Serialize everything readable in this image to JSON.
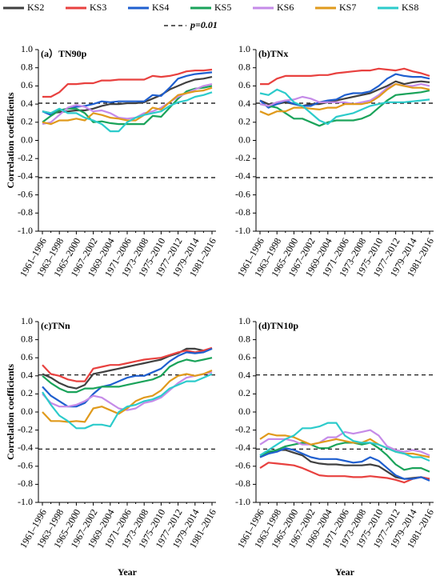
{
  "chart_data": [
    {
      "type": "line",
      "title": "(a）TN90p",
      "ylabel": "Correlation coefficients",
      "reference_label": "p=0.01",
      "categories": [
        "1961–1996",
        null,
        "1963–1998",
        null,
        "1965–2000",
        null,
        "1967–2002",
        null,
        "1969–2004",
        null,
        "1971–2006",
        null,
        "1973–2008",
        null,
        "1975–2010",
        null,
        "1977–2012",
        null,
        "1979–2014",
        null,
        "1981–2016"
      ],
      "ylim": [
        -1,
        1
      ],
      "yticks": [
        {
          "value": 1,
          "label": "1.0"
        },
        0.8,
        0.6,
        0.4,
        0.2,
        {
          "value": 0,
          "label": "0.0"
        },
        -0.2,
        -0.4,
        -0.6,
        -0.8,
        {
          "value": -1,
          "label": "-1.0"
        }
      ],
      "reference_lines": [
        0.41,
        -0.41
      ],
      "series": [
        {
          "name": "KS2",
          "color": "#404040",
          "values": [
            0.32,
            0.3,
            0.31,
            0.32,
            0.33,
            0.33,
            0.35,
            0.38,
            0.4,
            0.4,
            0.41,
            0.41,
            0.42,
            0.46,
            0.5,
            0.56,
            0.6,
            0.64,
            0.67,
            0.68,
            0.7
          ]
        },
        {
          "name": "KS3",
          "color": "#e8413f",
          "values": [
            0.48,
            0.48,
            0.53,
            0.62,
            0.62,
            0.63,
            0.63,
            0.66,
            0.66,
            0.67,
            0.67,
            0.67,
            0.67,
            0.71,
            0.7,
            0.71,
            0.73,
            0.76,
            0.77,
            0.77,
            0.78
          ]
        },
        {
          "name": "KS4",
          "color": "#1f5fcf",
          "values": [
            0.32,
            0.28,
            0.33,
            0.35,
            0.37,
            0.38,
            0.4,
            0.43,
            0.42,
            0.43,
            0.43,
            0.43,
            0.43,
            0.5,
            0.49,
            0.58,
            0.68,
            0.71,
            0.73,
            0.74,
            0.75
          ]
        },
        {
          "name": "KS5",
          "color": "#1aa35a",
          "values": [
            0.2,
            0.27,
            0.33,
            0.35,
            0.35,
            0.3,
            0.2,
            0.21,
            0.19,
            0.18,
            0.18,
            0.18,
            0.18,
            0.27,
            0.26,
            0.36,
            0.46,
            0.54,
            0.57,
            0.58,
            0.6
          ]
        },
        {
          "name": "KS6",
          "color": "#c58be8",
          "values": [
            0.18,
            0.2,
            0.28,
            0.36,
            0.39,
            0.37,
            0.32,
            0.33,
            0.3,
            0.25,
            0.24,
            0.25,
            0.3,
            0.32,
            0.36,
            0.42,
            0.48,
            0.52,
            0.56,
            0.6,
            0.62
          ]
        },
        {
          "name": "KS7",
          "color": "#e09a1c",
          "values": [
            0.2,
            0.18,
            0.22,
            0.22,
            0.24,
            0.22,
            0.3,
            0.28,
            0.25,
            0.24,
            0.22,
            0.22,
            0.28,
            0.36,
            0.34,
            0.42,
            0.5,
            0.52,
            0.54,
            0.55,
            0.58
          ]
        },
        {
          "name": "KS8",
          "color": "#2ccbcb",
          "values": [
            0.32,
            0.3,
            0.35,
            0.3,
            0.3,
            0.25,
            0.22,
            0.18,
            0.1,
            0.1,
            0.2,
            0.25,
            0.28,
            0.3,
            0.32,
            0.38,
            0.42,
            0.44,
            0.48,
            0.5,
            0.53
          ]
        }
      ]
    },
    {
      "type": "line",
      "title": "(b)TNx",
      "categories": [
        "1961–1996",
        null,
        "1963–1998",
        null,
        "1965–2000",
        null,
        "1967–2002",
        null,
        "1969–2004",
        null,
        "1971–2006",
        null,
        "1973–2008",
        null,
        "1975–2010",
        null,
        "1977–2012",
        null,
        "1979–2014",
        null,
        "1981–2016"
      ],
      "ylim": [
        -1,
        1
      ],
      "yticks": [
        {
          "value": 1,
          "label": "1.0"
        },
        0.8,
        0.6,
        0.4,
        0.2,
        {
          "value": 0,
          "label": "0.0"
        },
        -0.2,
        -0.4,
        -0.6,
        -0.8,
        {
          "value": -1,
          "label": "-1.0"
        }
      ],
      "reference_lines": [
        0.41,
        -0.41
      ],
      "series": [
        {
          "name": "KS2",
          "color": "#404040",
          "values": [
            0.44,
            0.4,
            0.4,
            0.42,
            0.4,
            0.38,
            0.4,
            0.4,
            0.42,
            0.44,
            0.46,
            0.48,
            0.5,
            0.52,
            0.56,
            0.6,
            0.65,
            0.62,
            0.64,
            0.65,
            0.64
          ]
        },
        {
          "name": "KS3",
          "color": "#e8413f",
          "values": [
            0.62,
            0.62,
            0.68,
            0.71,
            0.71,
            0.71,
            0.71,
            0.72,
            0.72,
            0.74,
            0.75,
            0.76,
            0.77,
            0.77,
            0.79,
            0.78,
            0.77,
            0.79,
            0.76,
            0.74,
            0.71
          ]
        },
        {
          "name": "KS4",
          "color": "#1f5fcf",
          "values": [
            0.44,
            0.36,
            0.4,
            0.44,
            0.4,
            0.38,
            0.38,
            0.42,
            0.44,
            0.45,
            0.5,
            0.52,
            0.52,
            0.54,
            0.6,
            0.68,
            0.73,
            0.71,
            0.7,
            0.7,
            0.68
          ]
        },
        {
          "name": "KS5",
          "color": "#1aa35a",
          "values": [
            0.4,
            0.38,
            0.36,
            0.3,
            0.24,
            0.24,
            0.2,
            0.16,
            0.2,
            0.22,
            0.22,
            0.22,
            0.24,
            0.28,
            0.36,
            0.44,
            0.5,
            0.51,
            0.52,
            0.53,
            0.55
          ]
        },
        {
          "name": "KS6",
          "color": "#c58be8",
          "values": [
            0.4,
            0.38,
            0.42,
            0.44,
            0.45,
            0.48,
            0.46,
            0.42,
            0.42,
            0.42,
            0.42,
            0.4,
            0.42,
            0.44,
            0.5,
            0.58,
            0.62,
            0.6,
            0.6,
            0.62,
            0.6
          ]
        },
        {
          "name": "KS7",
          "color": "#e09a1c",
          "values": [
            0.32,
            0.28,
            0.32,
            0.32,
            0.36,
            0.36,
            0.35,
            0.34,
            0.36,
            0.36,
            0.4,
            0.4,
            0.4,
            0.42,
            0.48,
            0.56,
            0.62,
            0.6,
            0.58,
            0.58,
            0.56
          ]
        },
        {
          "name": "KS8",
          "color": "#2ccbcb",
          "values": [
            0.52,
            0.5,
            0.56,
            0.52,
            0.42,
            0.38,
            0.3,
            0.22,
            0.18,
            0.26,
            0.28,
            0.3,
            0.34,
            0.38,
            0.4,
            0.42,
            0.42,
            0.42,
            0.43,
            0.44,
            0.45
          ]
        }
      ]
    },
    {
      "type": "line",
      "title": "(c)TNn",
      "ylabel": "Correlation coefficients",
      "xlabel": "Year",
      "categories": [
        "1961–1996",
        null,
        "1963–1998",
        null,
        "1965–2000",
        null,
        "1967–2002",
        null,
        "1969–2004",
        null,
        "1971–2006",
        null,
        "1973–2008",
        null,
        "1975–2010",
        null,
        "1977–2012",
        null,
        "1979–2014",
        null,
        "1981–2016"
      ],
      "ylim": [
        -1,
        1
      ],
      "yticks": [
        {
          "value": 1,
          "label": "1.0"
        },
        0.8,
        0.6,
        0.4,
        0.2,
        {
          "value": 0,
          "label": "0.0"
        },
        -0.2,
        -0.4,
        -0.6,
        -0.8,
        {
          "value": -1,
          "label": "-1.0"
        }
      ],
      "reference_lines": [
        0.41,
        -0.41
      ],
      "series": [
        {
          "name": "KS2",
          "color": "#404040",
          "values": [
            0.42,
            0.38,
            0.32,
            0.28,
            0.26,
            0.3,
            0.42,
            0.44,
            0.46,
            0.48,
            0.5,
            0.52,
            0.54,
            0.56,
            0.58,
            0.62,
            0.65,
            0.7,
            0.7,
            0.68,
            0.7
          ]
        },
        {
          "name": "KS3",
          "color": "#e8413f",
          "values": [
            0.52,
            0.42,
            0.4,
            0.36,
            0.34,
            0.34,
            0.48,
            0.5,
            0.52,
            0.52,
            0.54,
            0.56,
            0.58,
            0.59,
            0.6,
            0.63,
            0.66,
            0.68,
            0.66,
            0.68,
            0.71
          ]
        },
        {
          "name": "KS4",
          "color": "#1f5fcf",
          "values": [
            0.28,
            0.18,
            0.12,
            0.06,
            0.06,
            0.1,
            0.2,
            0.28,
            0.3,
            0.34,
            0.38,
            0.4,
            0.4,
            0.44,
            0.48,
            0.56,
            0.62,
            0.66,
            0.65,
            0.66,
            0.7
          ]
        },
        {
          "name": "KS5",
          "color": "#1aa35a",
          "values": [
            0.4,
            0.32,
            0.26,
            0.22,
            0.22,
            0.26,
            0.26,
            0.28,
            0.28,
            0.28,
            0.3,
            0.32,
            0.34,
            0.36,
            0.4,
            0.5,
            0.55,
            0.58,
            0.56,
            0.58,
            0.6
          ]
        },
        {
          "name": "KS6",
          "color": "#c58be8",
          "values": [
            0.2,
            0.1,
            0.06,
            0.06,
            0.08,
            0.12,
            0.18,
            0.16,
            0.1,
            0.04,
            0.02,
            0.04,
            0.1,
            0.12,
            0.16,
            0.24,
            0.32,
            0.38,
            0.4,
            0.42,
            0.44
          ]
        },
        {
          "name": "KS7",
          "color": "#e09a1c",
          "values": [
            0.0,
            -0.1,
            -0.1,
            -0.11,
            -0.1,
            -0.11,
            0.04,
            0.06,
            0.02,
            -0.02,
            0.04,
            0.12,
            0.16,
            0.18,
            0.24,
            0.34,
            0.4,
            0.42,
            0.4,
            0.42,
            0.46
          ]
        },
        {
          "name": "KS8",
          "color": "#2ccbcb",
          "values": [
            0.22,
            0.08,
            -0.04,
            -0.1,
            -0.18,
            -0.18,
            -0.14,
            -0.14,
            -0.16,
            0.0,
            0.06,
            0.08,
            0.12,
            0.14,
            0.18,
            0.26,
            0.3,
            0.34,
            0.34,
            0.38,
            0.42
          ]
        }
      ]
    },
    {
      "type": "line",
      "title": "(d)TN10p",
      "xlabel": "Year",
      "categories": [
        "1961–1996",
        null,
        "1963–1998",
        null,
        "1965–2000",
        null,
        "1967–2002",
        null,
        "1969–2004",
        null,
        "1971–2006",
        null,
        "1973–2008",
        null,
        "1975–2010",
        null,
        "1977–2012",
        null,
        "1979–2014",
        null,
        "1981–2016"
      ],
      "ylim": [
        -1,
        1
      ],
      "yticks": [
        {
          "value": 1,
          "label": "1.0"
        },
        0.8,
        0.6,
        0.4,
        0.2,
        {
          "value": 0,
          "label": "0.0"
        },
        -0.2,
        -0.4,
        -0.6,
        -0.8,
        {
          "value": -1,
          "label": "-1.0"
        }
      ],
      "reference_lines": [
        0.41,
        -0.41
      ],
      "series": [
        {
          "name": "KS2",
          "color": "#404040",
          "values": [
            -0.5,
            -0.46,
            -0.42,
            -0.42,
            -0.45,
            -0.48,
            -0.55,
            -0.57,
            -0.58,
            -0.58,
            -0.59,
            -0.59,
            -0.59,
            -0.58,
            -0.6,
            -0.66,
            -0.72,
            -0.74,
            -0.73,
            -0.72,
            -0.74
          ]
        },
        {
          "name": "KS3",
          "color": "#e8413f",
          "values": [
            -0.62,
            -0.56,
            -0.57,
            -0.58,
            -0.59,
            -0.62,
            -0.66,
            -0.7,
            -0.71,
            -0.71,
            -0.71,
            -0.72,
            -0.72,
            -0.71,
            -0.72,
            -0.73,
            -0.75,
            -0.78,
            -0.74,
            -0.72,
            -0.74
          ]
        },
        {
          "name": "KS4",
          "color": "#1f5fcf",
          "values": [
            -0.5,
            -0.46,
            -0.44,
            -0.4,
            -0.42,
            -0.46,
            -0.5,
            -0.52,
            -0.52,
            -0.52,
            -0.54,
            -0.56,
            -0.55,
            -0.5,
            -0.54,
            -0.62,
            -0.7,
            -0.74,
            -0.74,
            -0.72,
            -0.76
          ]
        },
        {
          "name": "KS5",
          "color": "#1aa35a",
          "values": [
            -0.48,
            -0.44,
            -0.42,
            -0.38,
            -0.36,
            -0.34,
            -0.36,
            -0.4,
            -0.4,
            -0.36,
            -0.34,
            -0.34,
            -0.36,
            -0.34,
            -0.4,
            -0.48,
            -0.58,
            -0.64,
            -0.62,
            -0.62,
            -0.66
          ]
        },
        {
          "name": "KS6",
          "color": "#c58be8",
          "values": [
            -0.36,
            -0.3,
            -0.3,
            -0.3,
            -0.32,
            -0.36,
            -0.36,
            -0.34,
            -0.28,
            -0.28,
            -0.22,
            -0.24,
            -0.22,
            -0.2,
            -0.26,
            -0.38,
            -0.42,
            -0.44,
            -0.42,
            -0.44,
            -0.48
          ]
        },
        {
          "name": "KS7",
          "color": "#e09a1c",
          "values": [
            -0.3,
            -0.24,
            -0.26,
            -0.26,
            -0.28,
            -0.32,
            -0.36,
            -0.34,
            -0.32,
            -0.3,
            -0.32,
            -0.34,
            -0.34,
            -0.3,
            -0.36,
            -0.4,
            -0.44,
            -0.46,
            -0.46,
            -0.48,
            -0.5
          ]
        },
        {
          "name": "KS8",
          "color": "#2ccbcb",
          "values": [
            -0.48,
            -0.42,
            -0.36,
            -0.3,
            -0.26,
            -0.18,
            -0.18,
            -0.16,
            -0.12,
            -0.12,
            -0.26,
            -0.32,
            -0.34,
            -0.34,
            -0.36,
            -0.4,
            -0.44,
            -0.46,
            -0.5,
            -0.5,
            -0.54
          ]
        }
      ]
    }
  ]
}
